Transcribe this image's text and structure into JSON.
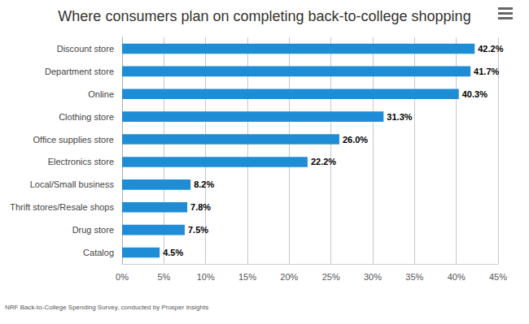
{
  "chart_data": {
    "type": "bar",
    "title": "Where consumers plan on completing back-to-college shopping",
    "source": "NRF Back-to-College Spending Survey, conducted by Prosper Insights",
    "orientation": "horizontal",
    "categories": [
      "Discount store",
      "Department store",
      "Online",
      "Clothing store",
      "Office supplies store",
      "Electronics store",
      "Local/Small business",
      "Thrift stores/Resale shops",
      "Drug store",
      "Catalog"
    ],
    "values": [
      42.2,
      41.7,
      40.3,
      31.3,
      26.0,
      22.2,
      8.2,
      7.8,
      7.5,
      4.5
    ],
    "value_labels": [
      "42.2%",
      "41.7%",
      "40.3%",
      "31.3%",
      "26.0%",
      "22.2%",
      "8.2%",
      "7.8%",
      "7.5%",
      "4.5%"
    ],
    "color": "#1f8dd6",
    "xlim": [
      0,
      45
    ],
    "xticks": [
      {
        "value": 0,
        "label": "0%"
      },
      {
        "value": 5,
        "label": "5%"
      },
      {
        "value": 10,
        "label": "10%"
      },
      {
        "value": 15,
        "label": "15%"
      },
      {
        "value": 20,
        "label": "20%"
      },
      {
        "value": 25,
        "label": "25%"
      },
      {
        "value": 30,
        "label": "30%"
      },
      {
        "value": 35,
        "label": "35%"
      },
      {
        "value": 40,
        "label": "40%"
      },
      {
        "value": 45,
        "label": "45%"
      }
    ],
    "grid": true,
    "data_labels": true
  }
}
